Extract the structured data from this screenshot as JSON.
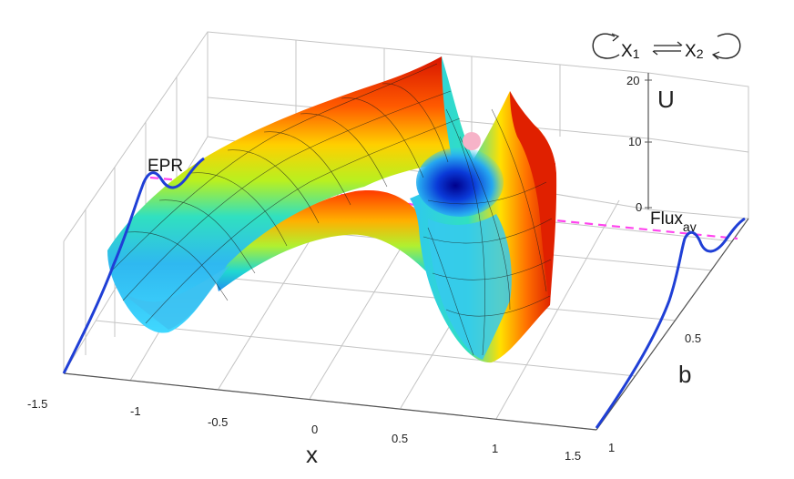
{
  "chart_data": {
    "type": "surface",
    "axes": {
      "x": {
        "label": "x",
        "ticks": [
          "-1.5",
          "-1",
          "-0.5",
          "0",
          "0.5",
          "1",
          "1.5"
        ],
        "range": [
          -1.5,
          1.5
        ]
      },
      "b": {
        "label": "b",
        "ticks": [
          "0.5",
          "1"
        ],
        "range": [
          0,
          1
        ]
      },
      "z": {
        "label": "U",
        "ticks": [
          "0",
          "10",
          "20"
        ],
        "range": [
          0,
          20
        ]
      }
    },
    "grid": true,
    "annotations": {
      "left_curve_label": "EPR",
      "right_curve_label": "Flux",
      "right_curve_label_sub": "av"
    },
    "inset": {
      "species_1": "X",
      "species_1_sub": "1",
      "species_2": "X",
      "species_2_sub": "2"
    },
    "colors": {
      "surface_low": "#0000b0",
      "surface_mid": "#30c8f0",
      "surface_high": "#e01a00",
      "side_curves": "#1f3fd6",
      "dashed_line": "#ff44ee",
      "marker": "#f6b3c8",
      "box": "#bdbdbd"
    }
  }
}
